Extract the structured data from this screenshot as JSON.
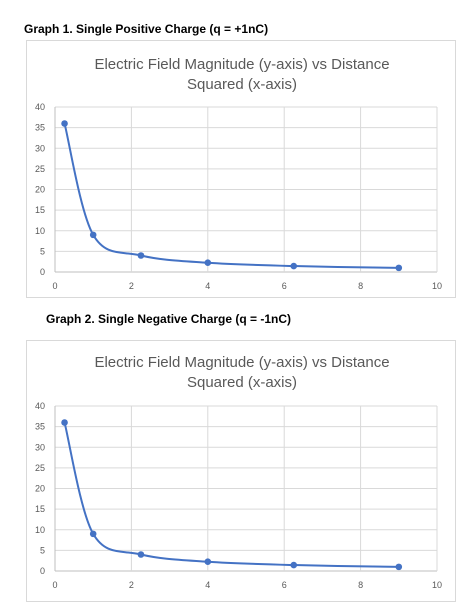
{
  "headings": [
    "Graph 1. Single Positive Charge (q = +1nC)",
    "Graph 2. Single Negative Charge (q = -1nC)"
  ],
  "chart_data": [
    {
      "type": "scatter",
      "title_lines": [
        "Electric Field Magnitude (y-axis) vs Distance",
        "Squared (x-axis)"
      ],
      "xlim": [
        0,
        10
      ],
      "ylim": [
        0,
        40
      ],
      "x_ticks": [
        0,
        2,
        4,
        6,
        8,
        10
      ],
      "y_ticks": [
        0,
        5,
        10,
        15,
        20,
        25,
        30,
        35,
        40
      ],
      "grid": true,
      "smooth_line": true,
      "series": [
        {
          "x": [
            0.25,
            1,
            2.25,
            4,
            6.25,
            9
          ],
          "y": [
            36,
            9,
            4,
            2.25,
            1.44,
            1
          ],
          "color": "#4472c4"
        }
      ]
    },
    {
      "type": "scatter",
      "title_lines": [
        "Electric Field Magnitude (y-axis) vs Distance",
        "Squared (x-axis)"
      ],
      "xlim": [
        0,
        10
      ],
      "ylim": [
        0,
        40
      ],
      "x_ticks": [
        0,
        2,
        4,
        6,
        8,
        10
      ],
      "y_ticks": [
        0,
        5,
        10,
        15,
        20,
        25,
        30,
        35,
        40
      ],
      "grid": true,
      "smooth_line": true,
      "series": [
        {
          "x": [
            0.25,
            1,
            2.25,
            4,
            6.25,
            9
          ],
          "y": [
            36,
            9,
            4,
            2.25,
            1.44,
            1
          ],
          "color": "#4472c4"
        }
      ]
    }
  ]
}
